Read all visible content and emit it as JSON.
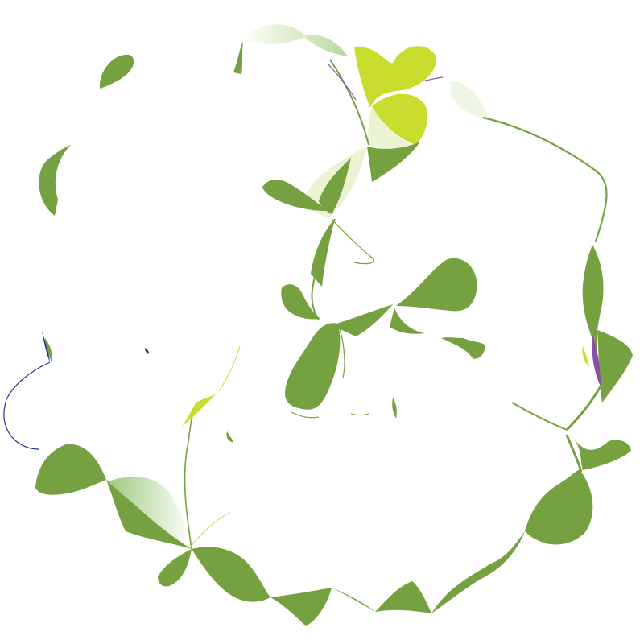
{
  "artwork": {
    "subject": "abstract-vine-ribbons",
    "background": "#ffffff",
    "palette": {
      "leaf_green": "#76a140",
      "lime": "#c8dc2e",
      "pale_green": "#eaf3d2",
      "mint_gradient_start": "#9fca7e",
      "purple": "#8a4fa6",
      "navy": "#2b2f86"
    }
  }
}
